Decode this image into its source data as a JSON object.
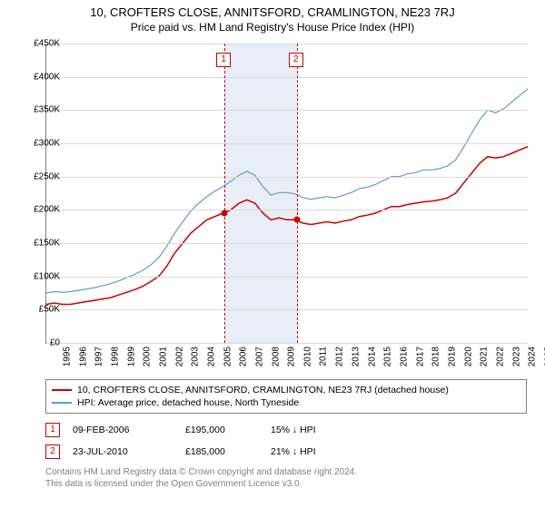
{
  "title": "10, CROFTERS CLOSE, ANNITSFORD, CRAMLINGTON, NE23 7RJ",
  "subtitle": "Price paid vs. HM Land Registry's House Price Index (HPI)",
  "chart": {
    "type": "line",
    "ylabel_prefix": "£",
    "ylim": [
      0,
      450
    ],
    "ytick_step": 50,
    "yticks": [
      "£0",
      "£50K",
      "£100K",
      "£150K",
      "£200K",
      "£250K",
      "£300K",
      "£350K",
      "£400K",
      "£450K"
    ],
    "xlim": [
      1995,
      2025
    ],
    "xticks": [
      "1995",
      "1996",
      "1997",
      "1998",
      "1999",
      "2000",
      "2001",
      "2002",
      "2003",
      "2004",
      "2005",
      "2006",
      "2007",
      "2008",
      "2009",
      "2010",
      "2011",
      "2012",
      "2013",
      "2014",
      "2015",
      "2016",
      "2017",
      "2018",
      "2019",
      "2020",
      "2021",
      "2022",
      "2023",
      "2024",
      "2025"
    ],
    "background_color": "#ffffff",
    "grid_color": "#d9d9d9",
    "axis_color": "#808080",
    "band": {
      "from": 2006.1,
      "to": 2010.6,
      "color": "#e8eef7"
    },
    "callouts": [
      {
        "idx": "1",
        "x": 2006.1
      },
      {
        "idx": "2",
        "x": 2010.6
      }
    ],
    "series": [
      {
        "name": "property",
        "label": "10, CROFTERS CLOSE, ANNITSFORD, CRAMLINGTON, NE23 7RJ (detached house)",
        "color": "#cc0000",
        "line_width": 1.5,
        "points": [
          [
            1995,
            58
          ],
          [
            1995.5,
            60
          ],
          [
            1996,
            58
          ],
          [
            1996.5,
            58
          ],
          [
            1997,
            60
          ],
          [
            1997.5,
            62
          ],
          [
            1998,
            64
          ],
          [
            1998.5,
            66
          ],
          [
            1999,
            68
          ],
          [
            1999.5,
            72
          ],
          [
            2000,
            76
          ],
          [
            2000.5,
            80
          ],
          [
            2001,
            85
          ],
          [
            2001.5,
            92
          ],
          [
            2002,
            100
          ],
          [
            2002.5,
            115
          ],
          [
            2003,
            135
          ],
          [
            2003.5,
            150
          ],
          [
            2004,
            165
          ],
          [
            2004.5,
            175
          ],
          [
            2005,
            185
          ],
          [
            2005.5,
            190
          ],
          [
            2006,
            195
          ],
          [
            2006.5,
            200
          ],
          [
            2007,
            210
          ],
          [
            2007.5,
            215
          ],
          [
            2008,
            210
          ],
          [
            2008.5,
            195
          ],
          [
            2009,
            185
          ],
          [
            2009.5,
            188
          ],
          [
            2010,
            185
          ],
          [
            2010.5,
            185
          ],
          [
            2011,
            180
          ],
          [
            2011.5,
            178
          ],
          [
            2012,
            180
          ],
          [
            2012.5,
            182
          ],
          [
            2013,
            180
          ],
          [
            2013.5,
            183
          ],
          [
            2014,
            185
          ],
          [
            2014.5,
            190
          ],
          [
            2015,
            192
          ],
          [
            2015.5,
            195
          ],
          [
            2016,
            200
          ],
          [
            2016.5,
            205
          ],
          [
            2017,
            205
          ],
          [
            2017.5,
            208
          ],
          [
            2018,
            210
          ],
          [
            2018.5,
            212
          ],
          [
            2019,
            213
          ],
          [
            2019.5,
            215
          ],
          [
            2020,
            218
          ],
          [
            2020.5,
            225
          ],
          [
            2021,
            240
          ],
          [
            2021.5,
            255
          ],
          [
            2022,
            270
          ],
          [
            2022.5,
            280
          ],
          [
            2023,
            278
          ],
          [
            2023.5,
            280
          ],
          [
            2024,
            285
          ],
          [
            2024.5,
            290
          ],
          [
            2025,
            295
          ]
        ]
      },
      {
        "name": "hpi",
        "label": "HPI: Average price, detached house, North Tyneside",
        "color": "#6699cc",
        "line_width": 1.2,
        "points": [
          [
            1995,
            75
          ],
          [
            1995.5,
            77
          ],
          [
            1996,
            76
          ],
          [
            1996.5,
            77
          ],
          [
            1997,
            79
          ],
          [
            1997.5,
            81
          ],
          [
            1998,
            83
          ],
          [
            1998.5,
            86
          ],
          [
            1999,
            89
          ],
          [
            1999.5,
            93
          ],
          [
            2000,
            98
          ],
          [
            2000.5,
            103
          ],
          [
            2001,
            109
          ],
          [
            2001.5,
            117
          ],
          [
            2002,
            128
          ],
          [
            2002.5,
            145
          ],
          [
            2003,
            165
          ],
          [
            2003.5,
            182
          ],
          [
            2004,
            198
          ],
          [
            2004.5,
            210
          ],
          [
            2005,
            220
          ],
          [
            2005.5,
            228
          ],
          [
            2006,
            235
          ],
          [
            2006.5,
            243
          ],
          [
            2007,
            252
          ],
          [
            2007.5,
            258
          ],
          [
            2008,
            252
          ],
          [
            2008.5,
            235
          ],
          [
            2009,
            222
          ],
          [
            2009.5,
            226
          ],
          [
            2010,
            226
          ],
          [
            2010.5,
            224
          ],
          [
            2011,
            218
          ],
          [
            2011.5,
            216
          ],
          [
            2012,
            218
          ],
          [
            2012.5,
            220
          ],
          [
            2013,
            218
          ],
          [
            2013.5,
            222
          ],
          [
            2014,
            226
          ],
          [
            2014.5,
            232
          ],
          [
            2015,
            234
          ],
          [
            2015.5,
            238
          ],
          [
            2016,
            244
          ],
          [
            2016.5,
            250
          ],
          [
            2017,
            250
          ],
          [
            2017.5,
            254
          ],
          [
            2018,
            256
          ],
          [
            2018.5,
            260
          ],
          [
            2019,
            260
          ],
          [
            2019.5,
            262
          ],
          [
            2020,
            266
          ],
          [
            2020.5,
            275
          ],
          [
            2021,
            294
          ],
          [
            2021.5,
            315
          ],
          [
            2022,
            335
          ],
          [
            2022.5,
            350
          ],
          [
            2023,
            346
          ],
          [
            2023.5,
            352
          ],
          [
            2024,
            362
          ],
          [
            2024.5,
            372
          ],
          [
            2025,
            382
          ]
        ]
      }
    ],
    "markers": [
      {
        "x": 2006.1,
        "y": 195,
        "color": "#cc0000"
      },
      {
        "x": 2010.6,
        "y": 185,
        "color": "#cc0000"
      }
    ]
  },
  "legend": {
    "items": [
      {
        "color": "#cc0000",
        "label_ref": "chart.series.0.label"
      },
      {
        "color": "#6699cc",
        "label_ref": "chart.series.1.label"
      }
    ]
  },
  "transactions": [
    {
      "idx": "1",
      "date": "09-FEB-2006",
      "price": "£195,000",
      "diff": "15% ↓ HPI"
    },
    {
      "idx": "2",
      "date": "23-JUL-2010",
      "price": "£185,000",
      "diff": "21% ↓ HPI"
    }
  ],
  "footer": {
    "line1": "Contains HM Land Registry data © Crown copyright and database right 2024.",
    "line2": "This data is licensed under the Open Government Licence v3.0."
  }
}
